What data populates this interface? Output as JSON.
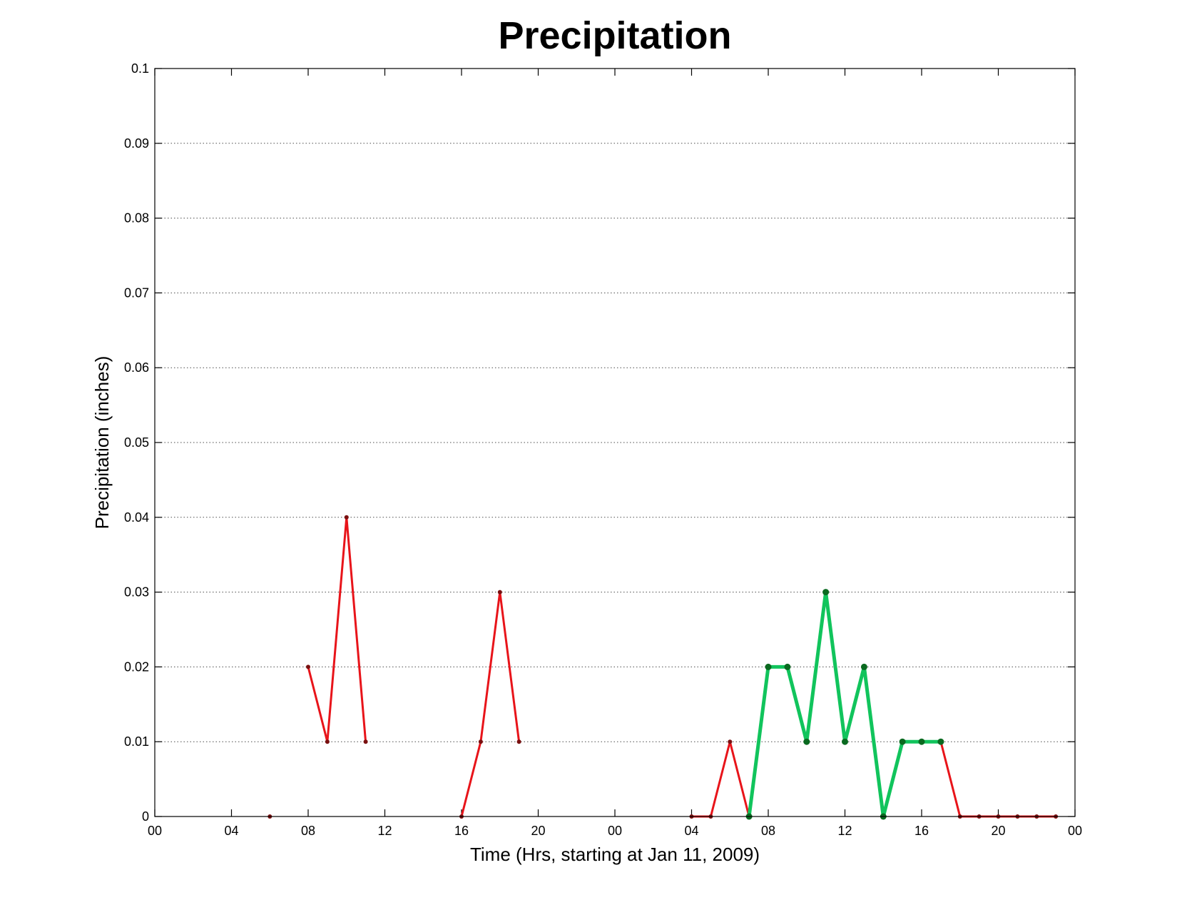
{
  "chart_data": {
    "type": "line",
    "title": "Precipitation",
    "xlabel": "Time (Hrs, starting at Jan 11, 2009)",
    "ylabel": "Precipitation (inches)",
    "x_unit": "hours",
    "xlim": [
      0,
      48
    ],
    "ylim": [
      0,
      0.1
    ],
    "x_ticks": [
      0,
      4,
      8,
      12,
      16,
      20,
      24,
      28,
      32,
      36,
      40,
      44,
      48
    ],
    "x_tick_labels": [
      "00",
      "04",
      "08",
      "12",
      "16",
      "20",
      "00",
      "04",
      "08",
      "12",
      "16",
      "20",
      "00"
    ],
    "y_ticks": [
      0,
      0.01,
      0.02,
      0.03,
      0.04,
      0.05,
      0.06,
      0.07,
      0.08,
      0.09,
      0.1
    ],
    "y_tick_labels": [
      "0",
      "0.01",
      "0.02",
      "0.03",
      "0.04",
      "0.05",
      "0.06",
      "0.07",
      "0.08",
      "0.09",
      "0.1"
    ],
    "grid": "y-dotted",
    "legend": "none",
    "series": [
      {
        "color": "#e8141a",
        "marker_color": "#7a1010",
        "style": "thin",
        "segments": [
          {
            "x": [
              6
            ],
            "y": [
              0
            ]
          },
          {
            "x": [
              8,
              9,
              10,
              11
            ],
            "y": [
              0.02,
              0.01,
              0.04,
              0.01
            ]
          },
          {
            "x": [
              16,
              17,
              18,
              19
            ],
            "y": [
              0,
              0.01,
              0.03,
              0.01
            ]
          },
          {
            "x": [
              28,
              29,
              30,
              31
            ],
            "y": [
              0,
              0,
              0.01,
              0
            ]
          },
          {
            "x": [
              41,
              42,
              43,
              44,
              45,
              46,
              47
            ],
            "y": [
              0.01,
              0,
              0,
              0,
              0,
              0,
              0
            ]
          }
        ]
      },
      {
        "color": "#11c45c",
        "marker_color": "#0a6a20",
        "style": "thick",
        "segments": [
          {
            "x": [
              31,
              32,
              33,
              34,
              35,
              36,
              37,
              38,
              39,
              40,
              41
            ],
            "y": [
              0,
              0.02,
              0.02,
              0.01,
              0.03,
              0.01,
              0.02,
              0,
              0.01,
              0.01,
              0.01
            ]
          }
        ]
      }
    ]
  }
}
